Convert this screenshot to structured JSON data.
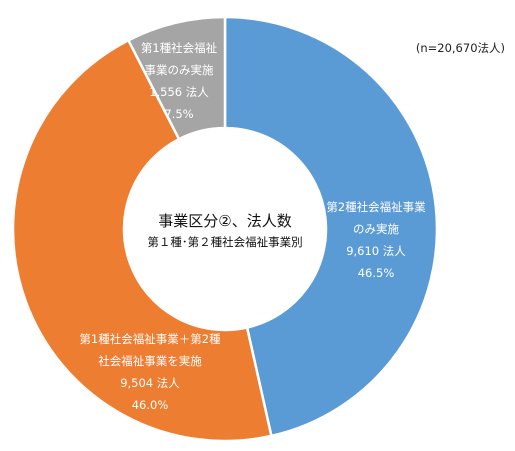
{
  "chart_data": {
    "type": "pie",
    "variant": "donut",
    "note": "(n=20,670法人)",
    "center_title": "事業区分②、法人数",
    "center_subtitle": "第１種･第２種社会福祉事業別",
    "start_angle_deg": 0,
    "direction": "clockwise",
    "slices": [
      {
        "name_lines": [
          "第2種社会福祉事業",
          "のみ実施"
        ],
        "value": 9610,
        "value_label": "9,610 法人",
        "percent": 46.5,
        "percent_label": "46.5%",
        "color": "#5b9bd5"
      },
      {
        "name_lines": [
          "第1種社会福祉事業＋第2種",
          "社会福祉事業を実施"
        ],
        "value": 9504,
        "value_label": "9,504 法人",
        "percent": 46.0,
        "percent_label": "46.0%",
        "color": "#ed7d31"
      },
      {
        "name_lines": [
          "第1種社会福祉",
          "事業のみ実施"
        ],
        "value": 1556,
        "value_label": "1,556 法人",
        "percent": 7.5,
        "percent_label": "7.5%",
        "color": "#a5a5a5"
      }
    ]
  },
  "colors": {
    "segment_border": "#ffffff",
    "background": "#ffffff"
  }
}
